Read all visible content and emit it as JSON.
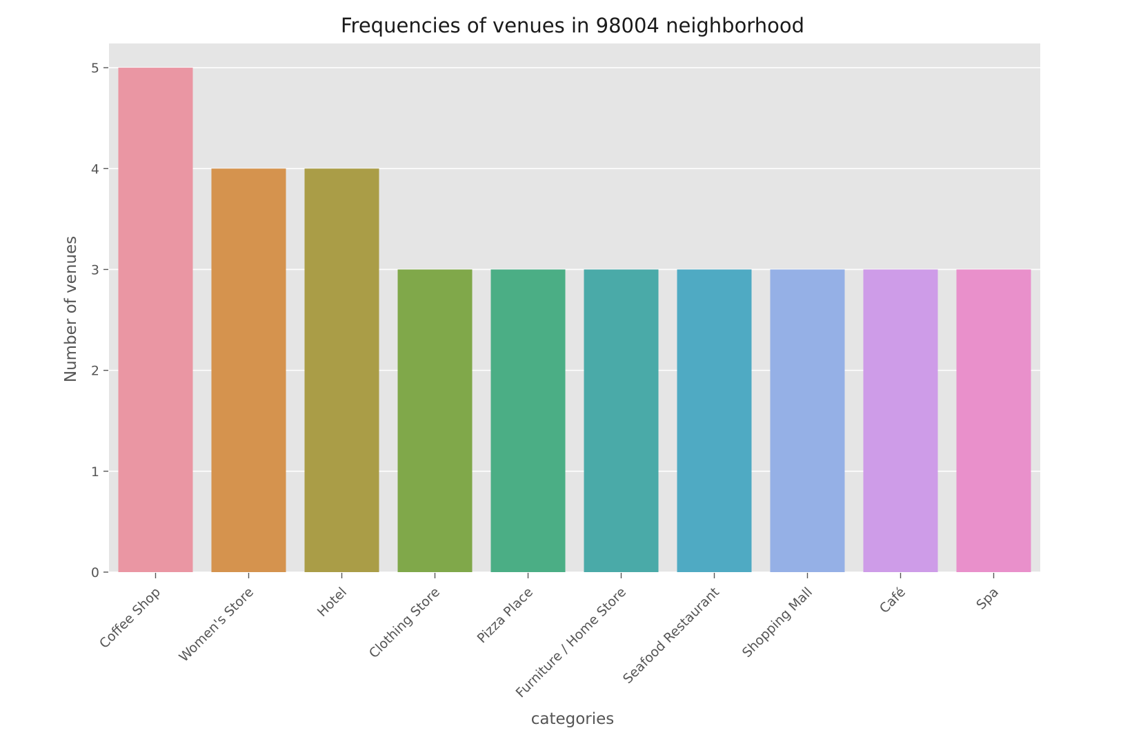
{
  "chart_data": {
    "type": "bar",
    "title": "Frequencies of venues in 98004 neighborhood",
    "xlabel": "categories",
    "ylabel": "Number of venues",
    "categories": [
      "Coffee Shop",
      "Women's Store",
      "Hotel",
      "Clothing Store",
      "Pizza Place",
      "Furniture / Home Store",
      "Seafood Restaurant",
      "Shopping Mall",
      "Café",
      "Spa"
    ],
    "values": [
      5,
      4,
      4,
      3,
      3,
      3,
      3,
      3,
      3,
      3
    ],
    "colors": [
      "#ea96a3",
      "#d5934e",
      "#aa9d47",
      "#80a84a",
      "#4bae85",
      "#4aaaa8",
      "#4faac3",
      "#95b0e6",
      "#ce9ce8",
      "#e990cb"
    ],
    "ylim": [
      0,
      5.24
    ],
    "yticks": [
      0,
      1,
      2,
      3,
      4,
      5
    ],
    "grid": true,
    "background": "#e5e5e5"
  }
}
